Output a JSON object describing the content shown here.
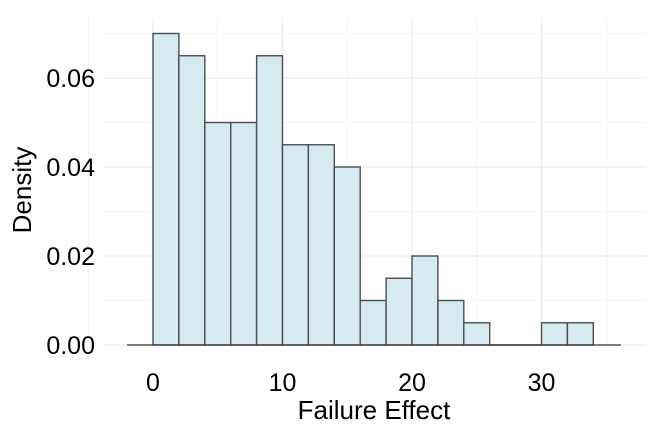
{
  "chart_data": {
    "type": "bar",
    "subtype": "histogram",
    "title": "",
    "xlabel": "Failure Effect",
    "ylabel": "Density",
    "xlim": [
      -2,
      36
    ],
    "ylim": [
      0,
      0.07
    ],
    "x_ticks": [
      0,
      10,
      20,
      30
    ],
    "y_ticks": [
      0.0,
      0.02,
      0.04,
      0.06
    ],
    "x_tick_labels": [
      "0",
      "10",
      "20",
      "30"
    ],
    "y_tick_labels": [
      "0.00",
      "0.02",
      "0.04",
      "0.06"
    ],
    "bin_width": 2,
    "bins": [
      {
        "x0": 0,
        "x1": 2,
        "density": 0.07
      },
      {
        "x0": 2,
        "x1": 4,
        "density": 0.065
      },
      {
        "x0": 4,
        "x1": 6,
        "density": 0.05
      },
      {
        "x0": 6,
        "x1": 8,
        "density": 0.05
      },
      {
        "x0": 8,
        "x1": 10,
        "density": 0.065
      },
      {
        "x0": 10,
        "x1": 12,
        "density": 0.045
      },
      {
        "x0": 12,
        "x1": 14,
        "density": 0.045
      },
      {
        "x0": 14,
        "x1": 16,
        "density": 0.04
      },
      {
        "x0": 16,
        "x1": 18,
        "density": 0.01
      },
      {
        "x0": 18,
        "x1": 20,
        "density": 0.015
      },
      {
        "x0": 20,
        "x1": 22,
        "density": 0.02
      },
      {
        "x0": 22,
        "x1": 24,
        "density": 0.01
      },
      {
        "x0": 24,
        "x1": 26,
        "density": 0.005
      },
      {
        "x0": 26,
        "x1": 28,
        "density": 0.0
      },
      {
        "x0": 28,
        "x1": 30,
        "density": 0.0
      },
      {
        "x0": 30,
        "x1": 32,
        "density": 0.005
      },
      {
        "x0": 32,
        "x1": 34,
        "density": 0.005
      }
    ],
    "grid": true,
    "legend": "none",
    "bar_fill": "#d6eaf1",
    "bar_stroke": "#4d4d4d",
    "grid_color": "#ebebeb",
    "axis_line_color": "#333333"
  }
}
